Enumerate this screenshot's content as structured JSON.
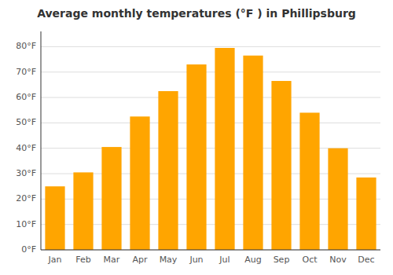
{
  "chart_data": {
    "type": "bar",
    "title": "Average monthly temperatures (°F ) in Phillipsburg",
    "categories": [
      "Jan",
      "Feb",
      "Mar",
      "Apr",
      "May",
      "Jun",
      "Jul",
      "Aug",
      "Sep",
      "Oct",
      "Nov",
      "Dec"
    ],
    "values": [
      25,
      30.5,
      40.5,
      52.5,
      62.5,
      73,
      79.5,
      76.5,
      66.5,
      54,
      40,
      28.5
    ],
    "color": "#FFA500",
    "ylim": [
      0,
      86
    ],
    "yticks": [
      {
        "value": 0,
        "label": "0°F"
      },
      {
        "value": 10,
        "label": "10°F"
      },
      {
        "value": 20,
        "label": "20°F"
      },
      {
        "value": 30,
        "label": "30°F"
      },
      {
        "value": 40,
        "label": "40°F"
      },
      {
        "value": 50,
        "label": "50°F"
      },
      {
        "value": 60,
        "label": "60°F"
      },
      {
        "value": 70,
        "label": "70°F"
      },
      {
        "value": 80,
        "label": "80°F"
      }
    ],
    "grid": true
  }
}
